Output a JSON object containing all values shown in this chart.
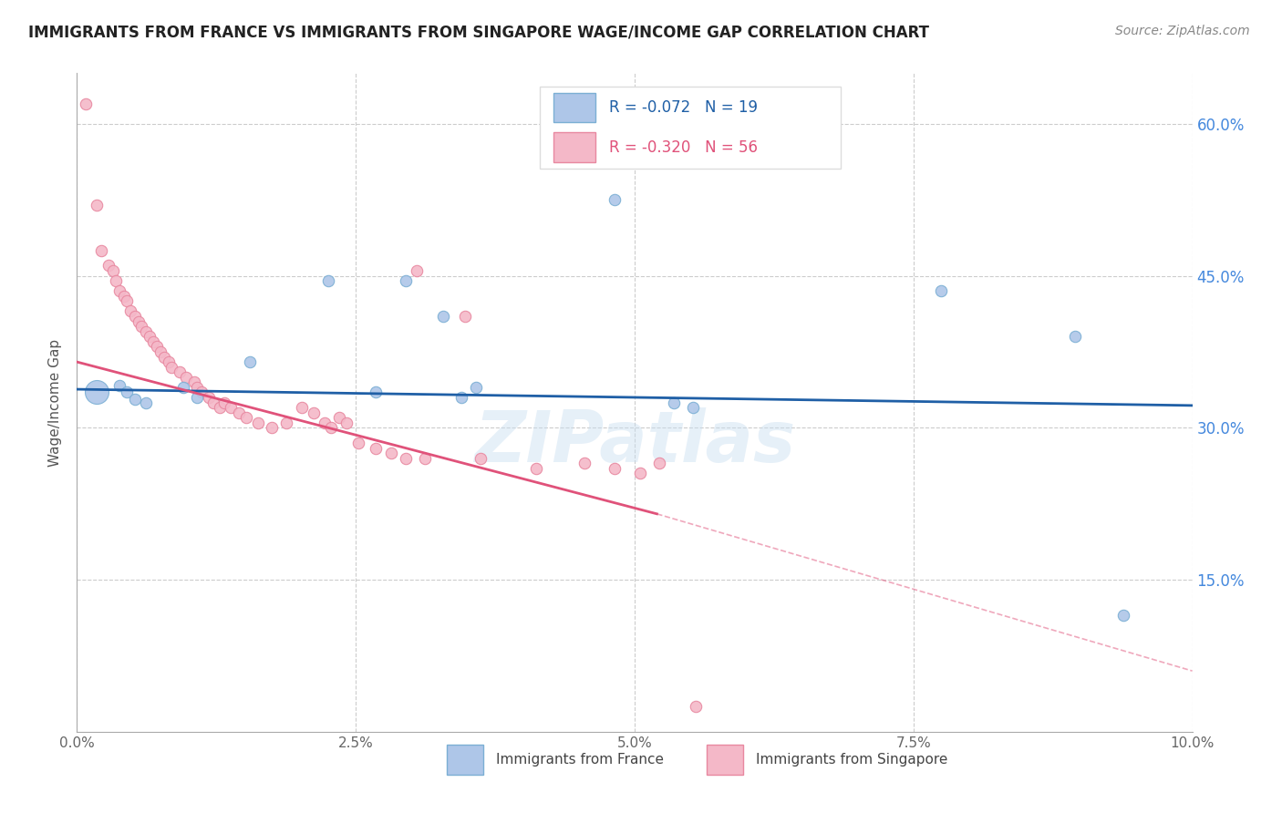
{
  "title": "IMMIGRANTS FROM FRANCE VS IMMIGRANTS FROM SINGAPORE WAGE/INCOME GAP CORRELATION CHART",
  "source": "Source: ZipAtlas.com",
  "ylabel": "Wage/Income Gap",
  "xlim": [
    0.0,
    10.0
  ],
  "ylim": [
    0.0,
    65.0
  ],
  "yticks": [
    15.0,
    30.0,
    45.0,
    60.0
  ],
  "ytick_labels": [
    "15.0%",
    "30.0%",
    "45.0%",
    "60.0%"
  ],
  "xticks": [
    0.0,
    2.5,
    5.0,
    7.5,
    10.0
  ],
  "france_color": "#aec6e8",
  "singapore_color": "#f4b8c8",
  "france_edge": "#7bafd4",
  "singapore_edge": "#e888a0",
  "regression_france_color": "#1f5fa6",
  "regression_singapore_color": "#e0527a",
  "watermark": "ZIPatlas",
  "france_reg": [
    0.0,
    33.8,
    10.0,
    32.2
  ],
  "singapore_reg_solid": [
    0.0,
    36.5,
    5.2,
    21.5
  ],
  "singapore_reg_dashed": [
    5.2,
    21.5,
    10.0,
    6.0
  ],
  "france_points": [
    [
      0.18,
      33.5,
      350
    ],
    [
      0.38,
      34.2,
      80
    ],
    [
      0.45,
      33.5,
      80
    ],
    [
      0.52,
      32.8,
      80
    ],
    [
      0.62,
      32.5,
      80
    ],
    [
      0.95,
      34.0,
      80
    ],
    [
      1.08,
      33.0,
      80
    ],
    [
      1.55,
      36.5,
      80
    ],
    [
      2.25,
      44.5,
      80
    ],
    [
      2.68,
      33.5,
      80
    ],
    [
      2.95,
      44.5,
      80
    ],
    [
      3.28,
      41.0,
      80
    ],
    [
      3.45,
      33.0,
      80
    ],
    [
      3.58,
      34.0,
      80
    ],
    [
      4.82,
      52.5,
      80
    ],
    [
      5.35,
      32.5,
      80
    ],
    [
      5.52,
      32.0,
      80
    ],
    [
      7.75,
      43.5,
      80
    ],
    [
      8.95,
      39.0,
      80
    ],
    [
      9.38,
      11.5,
      80
    ]
  ],
  "singapore_points": [
    [
      0.08,
      62.0,
      80
    ],
    [
      0.18,
      52.0,
      80
    ],
    [
      0.22,
      47.5,
      80
    ],
    [
      0.28,
      46.0,
      80
    ],
    [
      0.32,
      45.5,
      80
    ],
    [
      0.35,
      44.5,
      80
    ],
    [
      0.38,
      43.5,
      80
    ],
    [
      0.42,
      43.0,
      80
    ],
    [
      0.45,
      42.5,
      80
    ],
    [
      0.48,
      41.5,
      80
    ],
    [
      0.52,
      41.0,
      80
    ],
    [
      0.55,
      40.5,
      80
    ],
    [
      0.58,
      40.0,
      80
    ],
    [
      0.62,
      39.5,
      80
    ],
    [
      0.65,
      39.0,
      80
    ],
    [
      0.68,
      38.5,
      80
    ],
    [
      0.72,
      38.0,
      80
    ],
    [
      0.75,
      37.5,
      80
    ],
    [
      0.78,
      37.0,
      80
    ],
    [
      0.82,
      36.5,
      80
    ],
    [
      0.85,
      36.0,
      80
    ],
    [
      0.92,
      35.5,
      80
    ],
    [
      0.98,
      35.0,
      80
    ],
    [
      1.05,
      34.5,
      80
    ],
    [
      1.08,
      34.0,
      80
    ],
    [
      1.12,
      33.5,
      80
    ],
    [
      1.18,
      33.0,
      80
    ],
    [
      1.22,
      32.5,
      80
    ],
    [
      1.28,
      32.0,
      80
    ],
    [
      1.32,
      32.5,
      80
    ],
    [
      1.38,
      32.0,
      80
    ],
    [
      1.45,
      31.5,
      80
    ],
    [
      1.52,
      31.0,
      80
    ],
    [
      1.62,
      30.5,
      80
    ],
    [
      1.75,
      30.0,
      80
    ],
    [
      1.88,
      30.5,
      80
    ],
    [
      2.02,
      32.0,
      80
    ],
    [
      2.12,
      31.5,
      80
    ],
    [
      2.22,
      30.5,
      80
    ],
    [
      2.28,
      30.0,
      80
    ],
    [
      2.35,
      31.0,
      80
    ],
    [
      2.42,
      30.5,
      80
    ],
    [
      2.52,
      28.5,
      80
    ],
    [
      2.68,
      28.0,
      80
    ],
    [
      2.82,
      27.5,
      80
    ],
    [
      2.95,
      27.0,
      80
    ],
    [
      3.05,
      45.5,
      80
    ],
    [
      3.12,
      27.0,
      80
    ],
    [
      3.48,
      41.0,
      80
    ],
    [
      3.62,
      27.0,
      80
    ],
    [
      4.12,
      26.0,
      80
    ],
    [
      4.55,
      26.5,
      80
    ],
    [
      4.82,
      26.0,
      80
    ],
    [
      5.05,
      25.5,
      80
    ],
    [
      5.22,
      26.5,
      80
    ],
    [
      5.55,
      2.5,
      80
    ]
  ]
}
